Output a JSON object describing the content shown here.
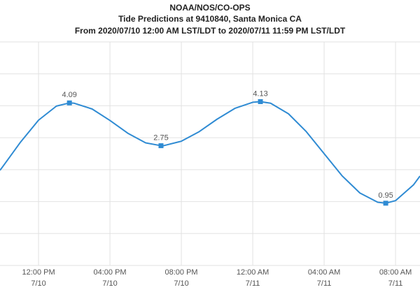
{
  "chart_data": {
    "type": "line",
    "title": "NOAA/NOS/CO-OPS",
    "subtitle": "Tide Predictions at 9410840, Santa Monica CA",
    "subtitle2": "From 2020/07/10 12:00 AM LST/LDT to 2020/07/11 11:59 PM LST/LDT",
    "x": [
      9.84,
      10,
      11,
      12,
      13,
      13.73,
      14,
      15,
      16,
      17,
      18,
      18.86,
      19,
      20,
      21,
      22,
      23,
      24,
      24.43,
      25,
      26,
      27,
      28,
      29,
      30,
      31,
      31.45,
      32,
      33,
      33.37
    ],
    "series": [
      {
        "color": "#2f8bd3",
        "values": [
          1.98,
          2.1,
          2.87,
          3.55,
          3.99,
          4.09,
          4.08,
          3.9,
          3.54,
          3.14,
          2.84,
          2.75,
          2.75,
          2.89,
          3.19,
          3.58,
          3.92,
          4.11,
          4.13,
          4.08,
          3.75,
          3.19,
          2.5,
          1.81,
          1.27,
          0.98,
          0.95,
          1.03,
          1.52,
          1.8
        ]
      }
    ],
    "extremes": {
      "x": [
        13.73,
        18.86,
        24.43,
        31.45
      ],
      "values": [
        4.09,
        2.75,
        4.13,
        0.95
      ],
      "color": "#2f8bd3"
    },
    "xlim": [
      9.84,
      33.37
    ],
    "xticks": [
      {
        "value": 12,
        "label": "12:00 PM"
      },
      {
        "value": 16,
        "label": "04:00 PM"
      },
      {
        "value": 20,
        "label": "08:00 PM"
      },
      {
        "value": 24,
        "label": "12:00 AM"
      },
      {
        "value": 28,
        "label": "04:00 AM"
      },
      {
        "value": 32,
        "label": "08:00 AM"
      }
    ],
    "xtick_dates": [
      "7/10",
      "7/10",
      "7/10",
      "7/11",
      "7/11",
      "7/11"
    ],
    "ylim": [
      -1,
      6
    ],
    "yticks": [
      -1,
      0,
      1,
      2,
      3,
      4,
      5,
      6
    ],
    "grid": true
  }
}
